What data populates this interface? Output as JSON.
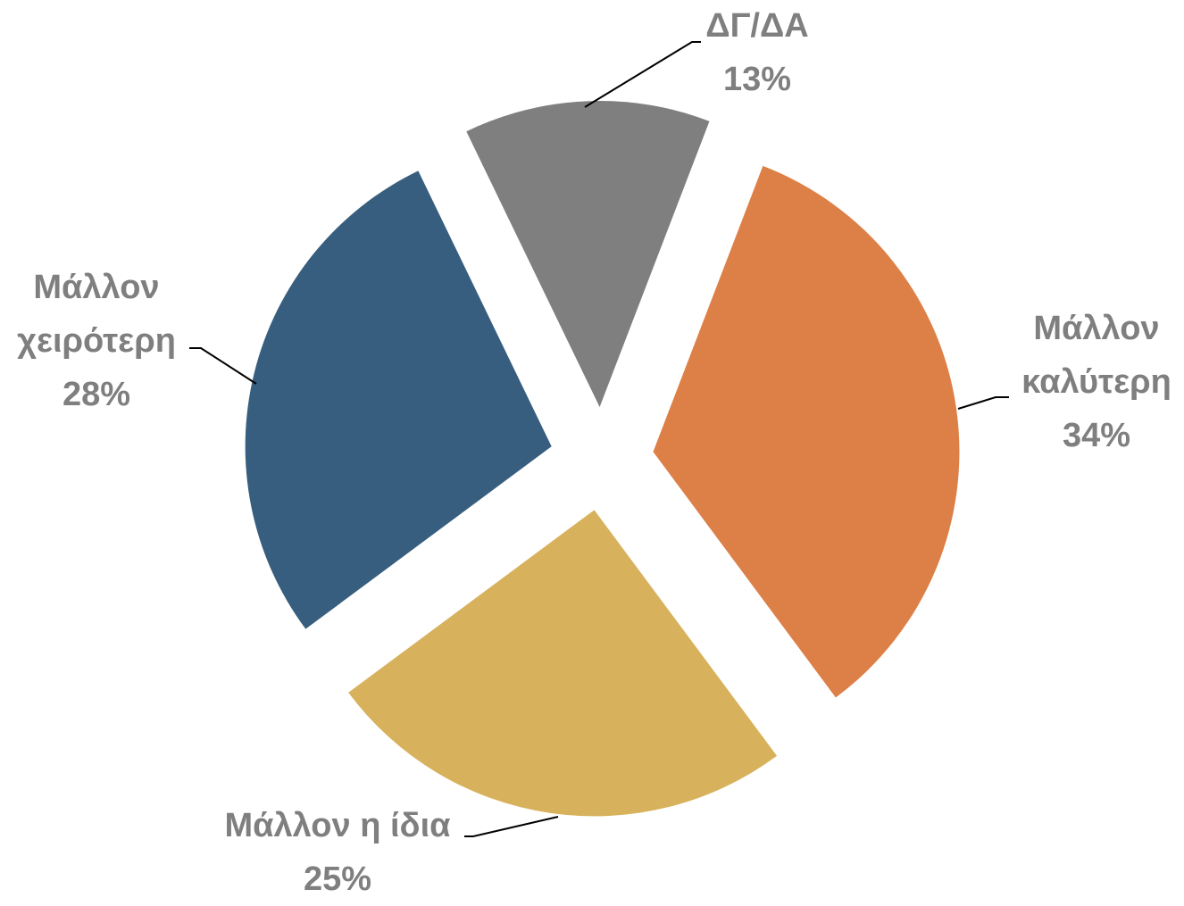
{
  "chart_data": {
    "type": "pie",
    "categories": [
      "Μάλλον καλύτερη",
      "Μάλλον η ίδια",
      "Μάλλον χειρότερη",
      "ΔΓ/ΔΑ"
    ],
    "values": [
      34,
      25,
      28,
      13
    ],
    "value_labels": [
      "34%",
      "25%",
      "28%",
      "13%"
    ],
    "colors": [
      "#dd8047",
      "#d7b15c",
      "#375e7e",
      "#7f7f7f"
    ]
  }
}
